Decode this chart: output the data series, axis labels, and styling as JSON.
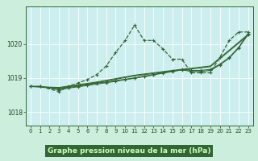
{
  "bg_color": "#cceedd",
  "plot_bg_color": "#cceeee",
  "grid_color": "#aaddcc",
  "line_color": "#336633",
  "title": "Graphe pression niveau de la mer (hPa)",
  "title_color": "#224422",
  "xlim": [
    -0.5,
    23.5
  ],
  "ylim": [
    1017.6,
    1021.1
  ],
  "yticks": [
    1018,
    1019,
    1020
  ],
  "xticks": [
    0,
    1,
    2,
    3,
    4,
    5,
    6,
    7,
    8,
    9,
    10,
    11,
    12,
    13,
    14,
    15,
    16,
    17,
    18,
    19,
    20,
    21,
    22,
    23
  ],
  "series": [
    {
      "x": [
        0,
        1,
        3,
        4,
        5,
        6,
        7,
        8,
        9,
        10,
        11,
        12,
        13,
        14,
        15,
        16,
        17,
        18,
        19,
        20,
        21,
        22,
        23
      ],
      "y": [
        1018.75,
        1018.75,
        1018.6,
        1018.75,
        1018.85,
        1018.95,
        1019.1,
        1019.35,
        1019.75,
        1020.1,
        1020.55,
        1020.1,
        1020.1,
        1019.85,
        1019.55,
        1019.55,
        1019.15,
        1019.15,
        1019.15,
        1019.6,
        1020.1,
        1020.35,
        1020.35
      ],
      "linestyle": "--",
      "linewidth": 0.9,
      "marker": "+",
      "markersize": 3.5
    },
    {
      "x": [
        0,
        1,
        3,
        4,
        5,
        6,
        7,
        8,
        9,
        10,
        11,
        12,
        13,
        14,
        15,
        16,
        17,
        18,
        19,
        20,
        21,
        22,
        23
      ],
      "y": [
        1018.75,
        1018.75,
        1018.68,
        1018.72,
        1018.76,
        1018.8,
        1018.85,
        1018.88,
        1018.92,
        1018.96,
        1019.0,
        1019.05,
        1019.1,
        1019.15,
        1019.2,
        1019.25,
        1019.22,
        1019.22,
        1019.25,
        1019.4,
        1019.6,
        1019.9,
        1020.3
      ],
      "linestyle": "-",
      "linewidth": 0.8,
      "marker": "+",
      "markersize": 2.5
    },
    {
      "x": [
        0,
        1,
        3,
        4,
        5,
        6,
        7,
        8,
        9,
        10,
        11,
        12,
        13,
        14,
        15,
        16,
        17,
        18,
        19,
        20,
        21,
        22,
        23
      ],
      "y": [
        1018.75,
        1018.75,
        1018.65,
        1018.7,
        1018.74,
        1018.78,
        1018.82,
        1018.86,
        1018.9,
        1018.95,
        1018.99,
        1019.04,
        1019.09,
        1019.14,
        1019.19,
        1019.24,
        1019.19,
        1019.19,
        1019.22,
        1019.38,
        1019.58,
        1019.88,
        1020.28
      ],
      "linestyle": "-",
      "linewidth": 0.8,
      "marker": "+",
      "markersize": 2.5
    },
    {
      "x": [
        0,
        3,
        7,
        11,
        15,
        19,
        23
      ],
      "y": [
        1018.75,
        1018.72,
        1018.88,
        1019.08,
        1019.22,
        1019.35,
        1020.28
      ],
      "linestyle": "-",
      "linewidth": 0.8,
      "marker": null,
      "markersize": 0
    },
    {
      "x": [
        0,
        3,
        7,
        11,
        15,
        19,
        23
      ],
      "y": [
        1018.75,
        1018.7,
        1018.86,
        1019.06,
        1019.2,
        1019.33,
        1020.25
      ],
      "linestyle": "-",
      "linewidth": 0.8,
      "marker": null,
      "markersize": 0
    }
  ],
  "title_bg_color": "#336633",
  "title_text_color": "#ccffcc"
}
